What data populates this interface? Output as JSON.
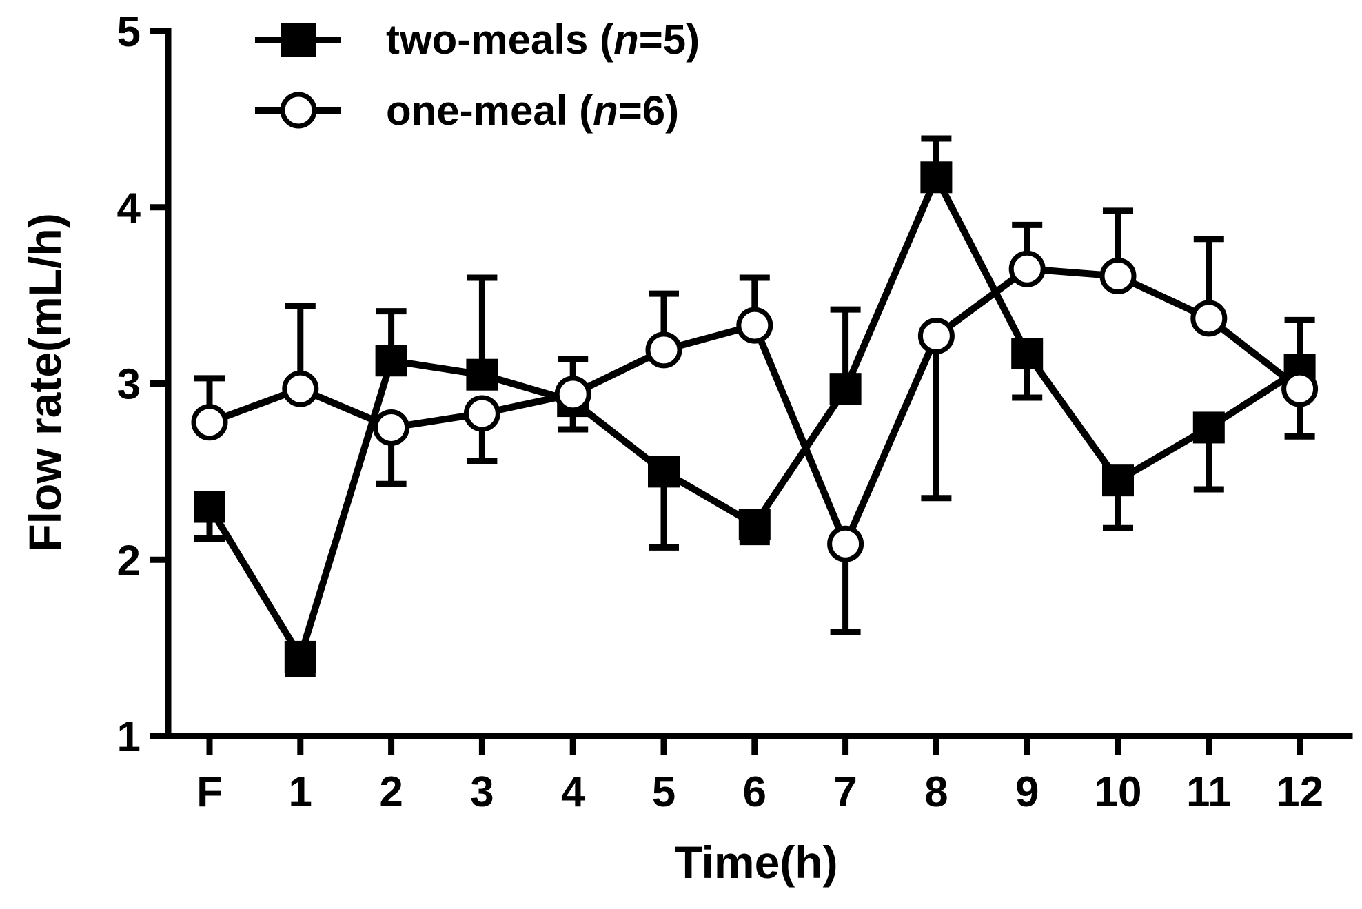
{
  "chart_data": {
    "type": "line",
    "title": "",
    "xlabel": "Time(h)",
    "ylabel": "Flow rate(mL/h)",
    "ylim": [
      1,
      5
    ],
    "yticks": [
      1,
      2,
      3,
      4,
      5
    ],
    "categories": [
      "F",
      "1",
      "2",
      "3",
      "4",
      "5",
      "6",
      "7",
      "8",
      "9",
      "10",
      "11",
      "12"
    ],
    "legend_position": "top-left",
    "series": [
      {
        "name": "two-meals",
        "n_label": "n",
        "n_value": "=5)",
        "name_prefix": "two-meals (",
        "marker": "filled-square",
        "values": [
          2.3,
          1.45,
          3.13,
          3.05,
          2.9,
          2.5,
          2.2,
          2.97,
          4.17,
          3.17,
          2.45,
          2.75,
          3.08
        ],
        "errors": [
          0.18,
          0.1,
          0.28,
          0.55,
          0.16,
          0.43,
          0.1,
          0.45,
          0.22,
          0.25,
          0.27,
          0.35,
          0.28
        ]
      },
      {
        "name": "one-meal",
        "n_label": "n",
        "n_value": "=6)",
        "name_prefix": "one-meal (",
        "marker": "open-circle",
        "values": [
          2.78,
          2.97,
          2.75,
          2.83,
          2.94,
          3.19,
          3.33,
          2.09,
          3.27,
          3.65,
          3.61,
          3.37,
          2.97
        ],
        "errors": [
          0.25,
          0.47,
          0.32,
          0.27,
          0.2,
          0.32,
          0.27,
          0.5,
          0.92,
          0.25,
          0.37,
          0.45,
          0.27
        ]
      }
    ]
  }
}
